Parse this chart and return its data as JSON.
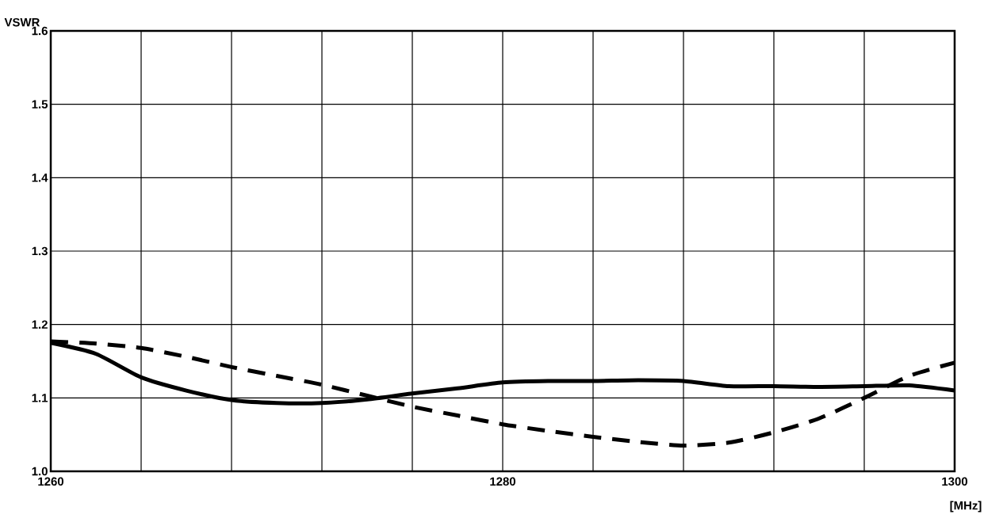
{
  "chart_data": {
    "type": "line",
    "xlabel": "[MHz]",
    "ylabel": "VSWR",
    "xlim": [
      1260,
      1300
    ],
    "ylim": [
      1.0,
      1.6
    ],
    "xticks": [
      1260,
      {
        "value": 1264,
        "label": null
      },
      {
        "value": 1268,
        "label": null
      },
      {
        "value": 1272,
        "label": null
      },
      {
        "value": 1276,
        "label": null
      },
      1280,
      {
        "value": 1284,
        "label": null
      },
      {
        "value": 1288,
        "label": null
      },
      {
        "value": 1292,
        "label": null
      },
      {
        "value": 1296,
        "label": null
      },
      1300
    ],
    "yticks": [
      {
        "value": 1.0,
        "label": "1.0"
      },
      1.1,
      1.2,
      1.3,
      1.4,
      1.5,
      1.6
    ],
    "grid": true,
    "x": [
      1260,
      1262,
      1264,
      1266,
      1268,
      1270,
      1272,
      1274,
      1276,
      1278,
      1280,
      1282,
      1284,
      1286,
      1288,
      1290,
      1292,
      1294,
      1296,
      1298,
      1300
    ],
    "series": [
      {
        "color": "#000000",
        "line_style": "solid",
        "values": [
          1.175,
          1.16,
          1.128,
          1.11,
          1.097,
          1.093,
          1.093,
          1.098,
          1.106,
          1.113,
          1.121,
          1.123,
          1.123,
          1.124,
          1.123,
          1.116,
          1.116,
          1.115,
          1.116,
          1.117,
          1.11
        ]
      },
      {
        "color": "#000000",
        "line_style": "dashed",
        "values": [
          1.177,
          1.174,
          1.168,
          1.156,
          1.142,
          1.13,
          1.118,
          1.103,
          1.088,
          1.076,
          1.064,
          1.055,
          1.047,
          1.04,
          1.035,
          1.039,
          1.053,
          1.072,
          1.1,
          1.13,
          1.148
        ]
      }
    ]
  }
}
